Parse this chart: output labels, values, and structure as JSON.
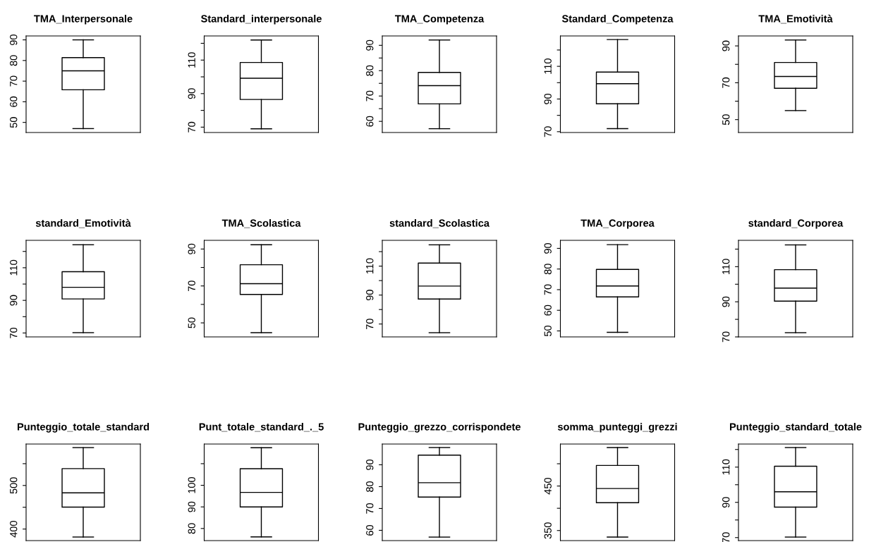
{
  "chart_data": [
    {
      "type": "box",
      "title": "TMA_Interpersonale",
      "categories": [
        null
      ],
      "boxes": [
        {
          "low": 47.0,
          "q1": 65.8,
          "median": 75.0,
          "q3": 81.4,
          "high": 90.0
        }
      ],
      "ylim": [
        45.1,
        91.9
      ],
      "yticks": [
        50,
        60,
        70,
        80,
        90
      ],
      "tick_labels": "y"
    },
    {
      "type": "box",
      "title": "Standard_interpersonale",
      "categories": [
        null
      ],
      "boxes": [
        {
          "low": 69.0,
          "q1": 86.5,
          "median": 99.2,
          "q3": 108.6,
          "high": 122.0
        }
      ],
      "ylim": [
        66.8,
        124.4
      ],
      "yticks": [
        70,
        {
          "value": 80,
          "label": null
        },
        90,
        {
          "value": 100,
          "label": null
        },
        110,
        {
          "value": 120,
          "label": null
        }
      ],
      "tick_labels": "y"
    },
    {
      "type": "box",
      "title": "TMA_Competenza",
      "categories": [
        null
      ],
      "boxes": [
        {
          "low": 57.1,
          "q1": 66.9,
          "median": 74.1,
          "q3": 79.3,
          "high": 92.1
        }
      ],
      "ylim": [
        55.6,
        93.7
      ],
      "yticks": [
        60,
        {
          "value": 65,
          "label": null
        },
        70,
        {
          "value": 75,
          "label": null
        },
        80,
        {
          "value": 85,
          "label": null
        },
        90
      ],
      "tick_labels": "y"
    },
    {
      "type": "box",
      "title": "Standard_Competenza",
      "categories": [
        null
      ],
      "boxes": [
        {
          "low": 71.9,
          "q1": 87.1,
          "median": 99.4,
          "q3": 106.5,
          "high": 126.4
        }
      ],
      "ylim": [
        69.5,
        128.6
      ],
      "yticks": [
        70,
        {
          "value": 80,
          "label": null
        },
        90,
        {
          "value": 100,
          "label": null
        },
        110,
        {
          "value": 120,
          "label": null
        }
      ],
      "tick_labels": "y"
    },
    {
      "type": "box",
      "title": "TMA_Emotività",
      "categories": [
        null
      ],
      "boxes": [
        {
          "low": 54.9,
          "q1": 67.0,
          "median": 73.4,
          "q3": 81.0,
          "high": 93.2
        }
      ],
      "ylim": [
        43.0,
        95.4
      ],
      "yticks": [
        50,
        {
          "value": 60,
          "label": null
        },
        70,
        {
          "value": 80,
          "label": null
        },
        90
      ],
      "tick_labels": "y"
    },
    {
      "type": "box",
      "title": "standard_Emotività",
      "categories": [
        null
      ],
      "boxes": [
        {
          "low": 70.2,
          "q1": 90.9,
          "median": 98.0,
          "q3": 107.6,
          "high": 124.1
        }
      ],
      "ylim": [
        67.6,
        126.8
      ],
      "yticks": [
        70,
        {
          "value": 80,
          "label": null
        },
        90,
        {
          "value": 100,
          "label": null
        },
        110,
        {
          "value": 120,
          "label": null
        }
      ],
      "tick_labels": "y"
    },
    {
      "type": "box",
      "title": "TMA_Scolastica",
      "categories": [
        null
      ],
      "boxes": [
        {
          "low": 44.7,
          "q1": 65.4,
          "median": 71.2,
          "q3": 81.5,
          "high": 92.3
        }
      ],
      "ylim": [
        42.4,
        94.7
      ],
      "yticks": [
        50,
        {
          "value": 60,
          "label": null
        },
        70,
        {
          "value": 80,
          "label": null
        },
        90
      ],
      "tick_labels": "y"
    },
    {
      "type": "box",
      "title": "standard_Scolastica",
      "categories": [
        null
      ],
      "boxes": [
        {
          "low": 64.0,
          "q1": 87.3,
          "median": 96.2,
          "q3": 112.1,
          "high": 124.7
        }
      ],
      "ylim": [
        61.1,
        127.8
      ],
      "yticks": [
        70,
        {
          "value": 80,
          "label": null
        },
        90,
        {
          "value": 100,
          "label": null
        },
        110,
        {
          "value": 120,
          "label": null
        }
      ],
      "tick_labels": "y"
    },
    {
      "type": "box",
      "title": "TMA_Corporea",
      "categories": [
        null
      ],
      "boxes": [
        {
          "low": 49.3,
          "q1": 66.5,
          "median": 71.8,
          "q3": 79.8,
          "high": 91.8
        }
      ],
      "ylim": [
        47.1,
        93.9
      ],
      "yticks": [
        50,
        60,
        70,
        80,
        90
      ],
      "tick_labels": "y"
    },
    {
      "type": "box",
      "title": "standard_Corporea",
      "categories": [
        null
      ],
      "boxes": [
        {
          "low": 72.4,
          "q1": 90.4,
          "median": 97.8,
          "q3": 108.3,
          "high": 122.4
        }
      ],
      "ylim": [
        70.0,
        125.0
      ],
      "yticks": [
        70,
        {
          "value": 80,
          "label": null
        },
        90,
        {
          "value": 100,
          "label": null
        },
        110,
        {
          "value": 120,
          "label": null
        }
      ],
      "tick_labels": "y"
    },
    {
      "type": "box",
      "title": "Punteggio_totale_standard",
      "categories": [
        null
      ],
      "boxes": [
        {
          "low": 381.7,
          "q1": 450.3,
          "median": 483.0,
          "q3": 538.6,
          "high": 586.9
        }
      ],
      "ylim": [
        373.5,
        595.1
      ],
      "yticks": [
        400,
        {
          "value": 450,
          "label": null
        },
        500,
        {
          "value": 550,
          "label": null
        }
      ],
      "tick_labels": "y"
    },
    {
      "type": "box",
      "title": "Punt_totale_standard_._5",
      "categories": [
        null
      ],
      "boxes": [
        {
          "low": 76.1,
          "q1": 90.0,
          "median": 96.7,
          "q3": 107.7,
          "high": 117.4
        }
      ],
      "ylim": [
        74.4,
        119.1
      ],
      "yticks": [
        80,
        90,
        100,
        {
          "value": 110,
          "label": null
        }
      ],
      "tick_labels": "y"
    },
    {
      "type": "box",
      "title": "Punteggio_grezzo_corrispondete",
      "categories": [
        null
      ],
      "boxes": [
        {
          "low": 56.9,
          "q1": 75.2,
          "median": 81.8,
          "q3": 94.4,
          "high": 97.9
        }
      ],
      "ylim": [
        55.3,
        99.5
      ],
      "yticks": [
        60,
        70,
        80,
        90
      ],
      "tick_labels": "y"
    },
    {
      "type": "box",
      "title": "somma_punteggi_grezzi",
      "categories": [
        null
      ],
      "boxes": [
        {
          "low": 335.4,
          "q1": 412.4,
          "median": 444.3,
          "q3": 496.2,
          "high": 536.3
        }
      ],
      "ylim": [
        327.4,
        544.3
      ],
      "yticks": [
        350,
        {
          "value": 400,
          "label": null
        },
        450,
        {
          "value": 500,
          "label": null
        }
      ],
      "tick_labels": "y"
    },
    {
      "type": "box",
      "title": "Punteggio_standard_totale",
      "categories": [
        null
      ],
      "boxes": [
        {
          "low": 70.3,
          "q1": 87.3,
          "median": 96.0,
          "q3": 110.5,
          "high": 121.1
        }
      ],
      "ylim": [
        68.3,
        123.1
      ],
      "yticks": [
        70,
        {
          "value": 80,
          "label": null
        },
        90,
        {
          "value": 100,
          "label": null
        },
        110,
        {
          "value": 120,
          "label": null
        }
      ],
      "tick_labels": "y"
    }
  ]
}
